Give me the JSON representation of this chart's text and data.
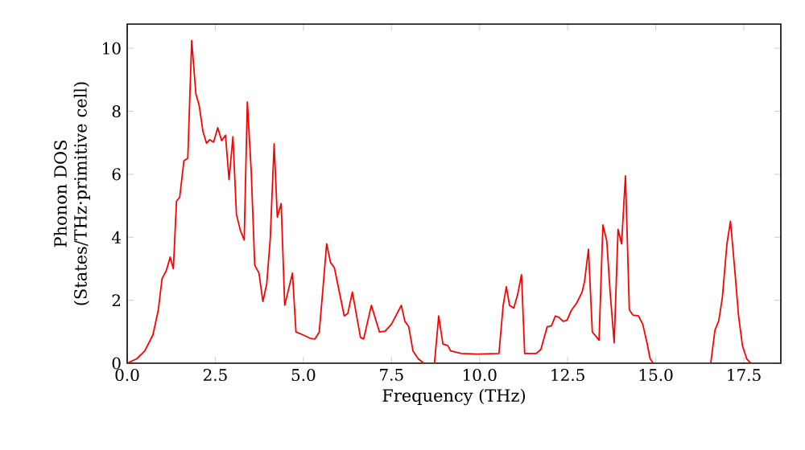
{
  "chart_data": {
    "type": "line",
    "xlabel": "Frequency (THz)",
    "ylabel": "Phonon DOS (States/THz·primitive cell)",
    "xlim": [
      0,
      18.55
    ],
    "ylim": [
      0,
      10.77
    ],
    "xticks": [
      {
        "value": 0,
        "label": "0.0"
      },
      {
        "value": 2.5,
        "label": "2.5"
      },
      {
        "value": 5,
        "label": "5.0"
      },
      {
        "value": 7.5,
        "label": "7.5"
      },
      {
        "value": 10,
        "label": "10.0"
      },
      {
        "value": 12.5,
        "label": "12.5"
      },
      {
        "value": 15,
        "label": "15.0"
      },
      {
        "value": 17.5,
        "label": "17.5"
      }
    ],
    "yticks": [
      0,
      2,
      4,
      6,
      8,
      10
    ],
    "marker": "none",
    "line_style": "solid",
    "series": [
      {
        "color": "#ff0000",
        "x": [
          0,
          0.27,
          0.5,
          0.73,
          0.88,
          0.99,
          1.11,
          1.22,
          1.31,
          1.4,
          1.49,
          1.61,
          1.72,
          1.83,
          1.95,
          2.04,
          2.15,
          2.25,
          2.34,
          2.45,
          2.57,
          2.68,
          2.79,
          2.89,
          3.0,
          3.1,
          3.21,
          3.32,
          3.41,
          3.52,
          3.62,
          3.74,
          3.85,
          3.96,
          4.06,
          4.17,
          4.26,
          4.37,
          4.47,
          4.58,
          4.69,
          4.79,
          4.99,
          5.22,
          5.33,
          5.45,
          5.56,
          5.66,
          5.77,
          5.88,
          6.16,
          6.26,
          6.39,
          6.62,
          6.71,
          6.93,
          7.16,
          7.32,
          7.5,
          7.78,
          7.88,
          7.99,
          8.11,
          8.26,
          8.42,
          8.72,
          8.84,
          8.96,
          9.1,
          9.18,
          9.48,
          9.94,
          10.55,
          10.67,
          10.76,
          10.85,
          10.97,
          11.08,
          11.19,
          11.28,
          11.61,
          11.74,
          11.92,
          12.04,
          12.15,
          12.25,
          12.37,
          12.48,
          12.6,
          12.76,
          12.91,
          12.98,
          13.09,
          13.2,
          13.29,
          13.39,
          13.5,
          13.61,
          13.71,
          13.82,
          13.93,
          14.03,
          14.14,
          14.25,
          14.35,
          14.51,
          14.63,
          14.75,
          14.84,
          14.93,
          16.56,
          16.68,
          16.79,
          16.89,
          17.02,
          17.12,
          17.25,
          17.35,
          17.46,
          17.58,
          17.7,
          18.55
        ],
        "values": [
          0,
          0.14,
          0.39,
          0.9,
          1.67,
          2.69,
          2.94,
          3.37,
          3.0,
          5.15,
          5.27,
          6.43,
          6.51,
          10.25,
          8.55,
          8.2,
          7.36,
          6.99,
          7.1,
          7.02,
          7.48,
          7.07,
          7.24,
          5.83,
          7.19,
          4.73,
          4.22,
          3.91,
          8.3,
          6.09,
          3.11,
          2.86,
          1.96,
          2.52,
          3.96,
          6.97,
          4.64,
          5.07,
          1.84,
          2.35,
          2.86,
          0.99,
          0.9,
          0.78,
          0.77,
          0.99,
          2.43,
          3.79,
          3.2,
          3.03,
          1.5,
          1.58,
          2.26,
          0.82,
          0.77,
          1.84,
          0.99,
          1.02,
          1.24,
          1.84,
          1.33,
          1.16,
          0.39,
          0.14,
          0,
          0,
          1.5,
          0.61,
          0.56,
          0.39,
          0.31,
          0.29,
          0.31,
          1.84,
          2.43,
          1.84,
          1.75,
          2.18,
          2.81,
          0.31,
          0.31,
          0.44,
          1.16,
          1.19,
          1.5,
          1.46,
          1.33,
          1.36,
          1.67,
          1.92,
          2.26,
          2.6,
          3.62,
          0.99,
          0.87,
          0.73,
          4.39,
          3.88,
          2.18,
          0.65,
          4.25,
          3.79,
          5.95,
          1.7,
          1.53,
          1.5,
          1.24,
          0.65,
          0.14,
          0,
          0,
          1.05,
          1.36,
          2.09,
          3.79,
          4.51,
          2.86,
          1.5,
          0.56,
          0.14,
          0,
          0
        ]
      }
    ]
  }
}
